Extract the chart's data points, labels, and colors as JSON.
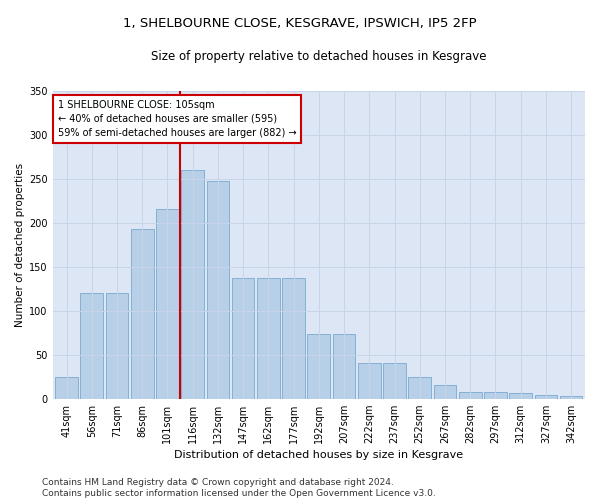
{
  "title1": "1, SHELBOURNE CLOSE, KESGRAVE, IPSWICH, IP5 2FP",
  "title2": "Size of property relative to detached houses in Kesgrave",
  "xlabel": "Distribution of detached houses by size in Kesgrave",
  "ylabel": "Number of detached properties",
  "categories": [
    "41sqm",
    "56sqm",
    "71sqm",
    "86sqm",
    "101sqm",
    "116sqm",
    "132sqm",
    "147sqm",
    "162sqm",
    "177sqm",
    "192sqm",
    "207sqm",
    "222sqm",
    "237sqm",
    "252sqm",
    "267sqm",
    "282sqm",
    "297sqm",
    "312sqm",
    "327sqm",
    "342sqm"
  ],
  "values": [
    25,
    120,
    120,
    193,
    215,
    260,
    247,
    137,
    137,
    137,
    74,
    74,
    40,
    40,
    25,
    15,
    8,
    8,
    6,
    4,
    3
  ],
  "bar_color": "#b8cfe8",
  "bar_edge_color": "#7aaad0",
  "vline_x": 4.5,
  "vline_color": "#cc0000",
  "annotation_text": "1 SHELBOURNE CLOSE: 105sqm\n← 40% of detached houses are smaller (595)\n59% of semi-detached houses are larger (882) →",
  "annotation_box_color": "#ffffff",
  "annotation_box_edge": "#cc0000",
  "ylim": [
    0,
    350
  ],
  "yticks": [
    0,
    50,
    100,
    150,
    200,
    250,
    300,
    350
  ],
  "grid_color": "#c8d4e8",
  "bg_color": "#dde6f4",
  "footer": "Contains HM Land Registry data © Crown copyright and database right 2024.\nContains public sector information licensed under the Open Government Licence v3.0.",
  "title1_fontsize": 9.5,
  "title2_fontsize": 8.5,
  "xlabel_fontsize": 8,
  "ylabel_fontsize": 7.5,
  "tick_fontsize": 7,
  "footer_fontsize": 6.5
}
